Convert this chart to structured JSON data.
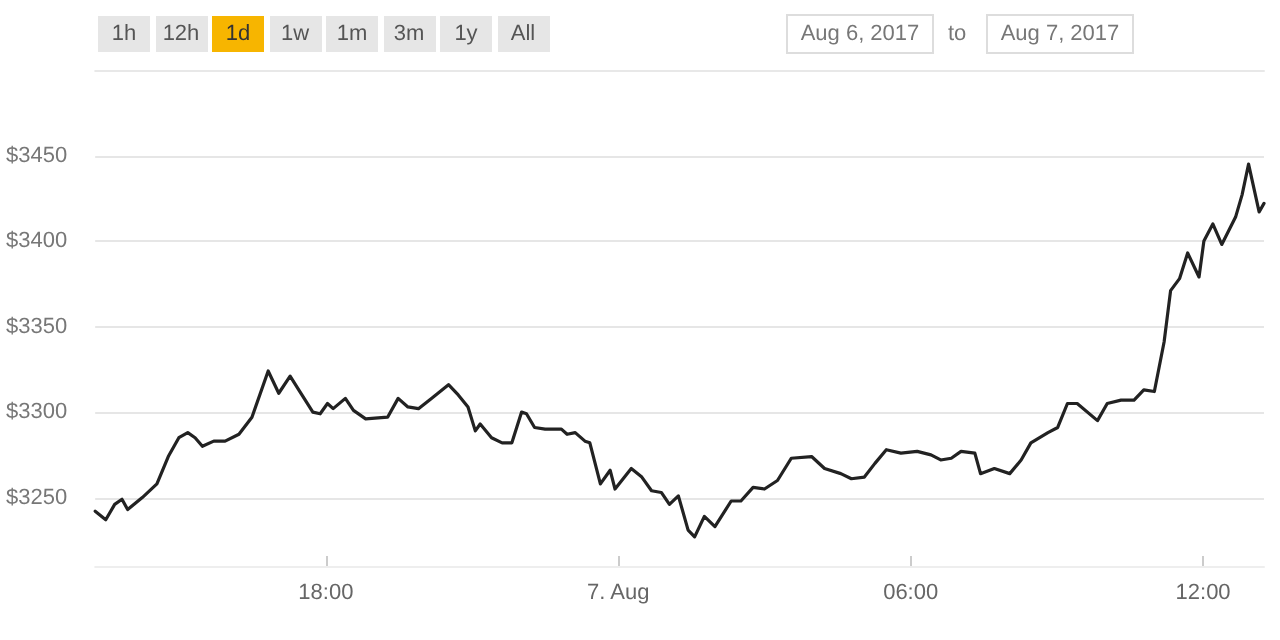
{
  "chart_data": {
    "type": "line",
    "annotations": [
      "1h",
      "12h",
      "1d",
      "1w",
      "1m",
      "3m",
      "1y",
      "All",
      "Aug 6, 2017",
      "to",
      "Aug 7, 2017"
    ],
    "x": [
      "2017-08-06T13:16",
      "2017-08-06T13:29",
      "2017-08-06T13:40",
      "2017-08-06T13:49",
      "2017-08-06T13:56",
      "2017-08-06T14:14",
      "2017-08-06T14:32",
      "2017-08-06T14:46",
      "2017-08-06T14:59",
      "2017-08-06T15:10",
      "2017-08-06T15:19",
      "2017-08-06T15:28",
      "2017-08-06T15:42",
      "2017-08-06T15:56",
      "2017-08-06T16:13",
      "2017-08-06T16:29",
      "2017-08-06T16:49",
      "2017-08-06T17:02",
      "2017-08-06T17:16",
      "2017-08-06T17:28",
      "2017-08-06T17:44",
      "2017-08-06T17:53",
      "2017-08-06T18:02",
      "2017-08-06T18:09",
      "2017-08-06T18:24",
      "2017-08-06T18:34",
      "2017-08-06T18:49",
      "2017-08-06T19:16",
      "2017-08-06T19:29",
      "2017-08-06T19:41",
      "2017-08-06T19:54",
      "2017-08-06T20:10",
      "2017-08-06T20:31",
      "2017-08-06T20:43",
      "2017-08-06T20:55",
      "2017-08-06T21:04",
      "2017-08-06T21:10",
      "2017-08-06T21:24",
      "2017-08-06T21:37",
      "2017-08-06T21:49",
      "2017-08-06T22:01",
      "2017-08-06T22:07",
      "2017-08-06T22:17",
      "2017-08-06T22:30",
      "2017-08-06T22:50",
      "2017-08-06T22:57",
      "2017-08-06T23:07",
      "2017-08-06T23:19",
      "2017-08-06T23:25",
      "2017-08-06T23:38",
      "2017-08-06T23:50",
      "2017-08-06T23:56",
      "2017-08-07T00:16",
      "2017-08-07T00:29",
      "2017-08-07T00:41",
      "2017-08-07T00:53",
      "2017-08-07T01:03",
      "2017-08-07T01:14",
      "2017-08-07T01:26",
      "2017-08-07T01:34",
      "2017-08-07T01:46",
      "2017-08-07T01:59",
      "2017-08-07T02:19",
      "2017-08-07T02:31",
      "2017-08-07T02:46",
      "2017-08-07T03:00",
      "2017-08-07T03:16",
      "2017-08-07T03:33",
      "2017-08-07T03:58",
      "2017-08-07T04:14",
      "2017-08-07T04:34",
      "2017-08-07T04:47",
      "2017-08-07T05:03",
      "2017-08-07T05:16",
      "2017-08-07T05:30",
      "2017-08-07T05:48",
      "2017-08-07T06:08",
      "2017-08-07T06:25",
      "2017-08-07T06:37",
      "2017-08-07T06:50",
      "2017-08-07T07:02",
      "2017-08-07T07:19",
      "2017-08-07T07:26",
      "2017-08-07T07:43",
      "2017-08-07T08:02",
      "2017-08-07T08:16",
      "2017-08-07T08:28",
      "2017-08-07T08:49",
      "2017-08-07T09:01",
      "2017-08-07T09:13",
      "2017-08-07T09:25",
      "2017-08-07T09:50",
      "2017-08-07T10:02",
      "2017-08-07T10:19",
      "2017-08-07T10:35",
      "2017-08-07T10:47",
      "2017-08-07T11:00",
      "2017-08-07T11:12",
      "2017-08-07T11:20",
      "2017-08-07T11:31",
      "2017-08-07T11:41",
      "2017-08-07T11:55",
      "2017-08-07T12:01",
      "2017-08-07T12:12",
      "2017-08-07T12:23",
      "2017-08-07T12:40",
      "2017-08-07T12:48",
      "2017-08-07T12:56",
      "2017-08-07T13:09",
      "2017-08-07T13:15"
    ],
    "series": [
      {
        "color": "#222222",
        "values": [
          3242,
          3237,
          3246,
          3249,
          3243,
          3250,
          3258,
          3274,
          3285,
          3288,
          3285,
          3280,
          3283,
          3283,
          3287,
          3297,
          3324,
          3311,
          3321,
          3312,
          3300,
          3299,
          3305,
          3302,
          3308,
          3301,
          3296,
          3297,
          3308,
          3303,
          3302,
          3308,
          3316,
          3310,
          3303,
          3289,
          3293,
          3285,
          3282,
          3282,
          3300,
          3299,
          3291,
          3290,
          3290,
          3287,
          3288,
          3283,
          3282,
          3258,
          3266,
          3255,
          3267,
          3262,
          3254,
          3253,
          3246,
          3251,
          3231,
          3227,
          3239,
          3233,
          3248,
          3248,
          3256,
          3255,
          3260,
          3273,
          3274,
          3267,
          3264,
          3261,
          3262,
          3270,
          3278,
          3276,
          3277,
          3275,
          3272,
          3273,
          3277,
          3276,
          3264,
          3267,
          3264,
          3272,
          3282,
          3288,
          3291,
          3305,
          3305,
          3295,
          3305,
          3307,
          3307,
          3313,
          3312,
          3341,
          3371,
          3378,
          3393,
          3379,
          3400,
          3410,
          3398,
          3414,
          3427,
          3445,
          3417,
          3422
        ]
      }
    ],
    "xlim": [
      "2017-08-06T13:16",
      "2017-08-07T13:15"
    ],
    "xticks": [
      {
        "value": "2017-08-06T18:00",
        "label": "18:00"
      },
      {
        "value": "2017-08-07T00:00",
        "label": "7. Aug"
      },
      {
        "value": "2017-08-07T06:00",
        "label": "06:00"
      },
      {
        "value": "2017-08-07T12:00",
        "label": "12:00"
      }
    ],
    "ylim": [
      3210,
      3500
    ],
    "yticks": [
      {
        "value": 3250,
        "label": "$3250"
      },
      {
        "value": 3300,
        "label": "$3300"
      },
      {
        "value": 3350,
        "label": "$3350"
      },
      {
        "value": 3400,
        "label": "$3400"
      },
      {
        "value": 3450,
        "label": "$3450"
      }
    ],
    "grid": "y",
    "marker": "none",
    "line_style": "solid"
  }
}
